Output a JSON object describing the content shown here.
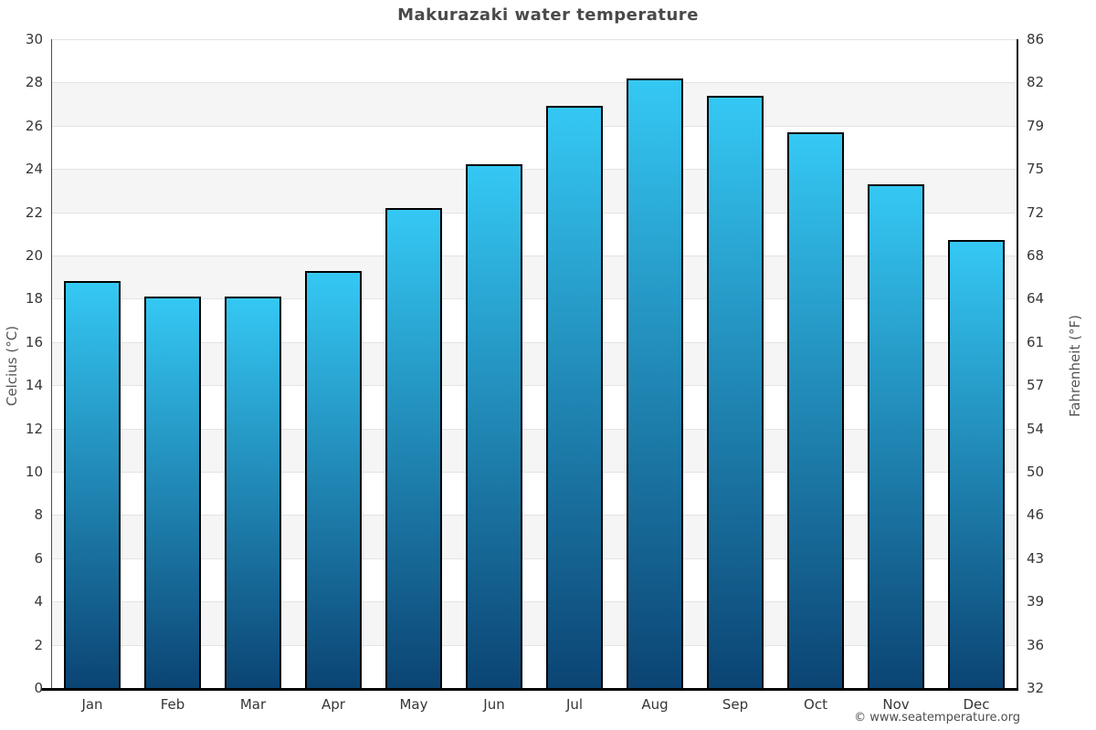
{
  "title": "Makurazaki water temperature",
  "footer_credit": "© www.seatemperature.org",
  "chart_data": {
    "type": "bar",
    "title": "Makurazaki water temperature",
    "categories": [
      "Jan",
      "Feb",
      "Mar",
      "Apr",
      "May",
      "Jun",
      "Jul",
      "Aug",
      "Sep",
      "Oct",
      "Nov",
      "Dec"
    ],
    "values": [
      18.8,
      18.1,
      18.1,
      19.3,
      22.2,
      24.2,
      26.9,
      28.2,
      27.4,
      25.7,
      23.3,
      20.7
    ],
    "unit": "°C",
    "ylabel_left": "Celcius (°C)",
    "ylabel_right": "Fahrenheit (°F)",
    "ylim": [
      0,
      30
    ],
    "yticks_celsius": [
      30,
      28,
      26,
      24,
      22,
      20,
      18,
      16,
      14,
      12,
      10,
      8,
      6,
      4,
      2,
      0
    ],
    "yticks_fahrenheit": [
      86,
      82,
      79,
      75,
      72,
      68,
      64,
      61,
      57,
      54,
      50,
      46,
      43,
      39,
      36,
      32
    ],
    "legend": "none",
    "grid": "alternating horizontal bands every 2°C",
    "colors": {
      "bar_gradient_top": "#35c8f4",
      "bar_gradient_bottom": "#0b4473",
      "bar_border": "#000000",
      "band_shade": "#f5f5f5",
      "gridline": "#e3e3e3",
      "title_text": "#4a4a4a",
      "tick_text": "#363636",
      "axis_title_text": "#555555",
      "baseline": "#000000"
    }
  }
}
